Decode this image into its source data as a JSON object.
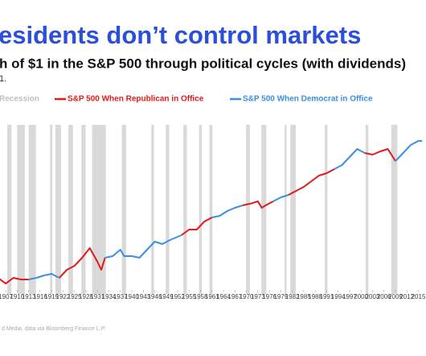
{
  "chart_data": {
    "type": "line",
    "title": "esidents don’t control markets",
    "subtitle": "h of $1 in the S&P 500 through political cycles (with dividends)",
    "note": "1.",
    "source": "d Media, data via Bloomberg Finance L.P.",
    "log_scale": true,
    "xlim": [
      1905.5,
      2017
    ],
    "ylim": [
      0.5,
      50000
    ],
    "xticks": [
      1907,
      1910,
      1913,
      1916,
      1919,
      1922,
      1925,
      1928,
      1931,
      1934,
      1937,
      1940,
      1943,
      1946,
      1949,
      1952,
      1955,
      1958,
      1961,
      1964,
      1967,
      1970,
      1973,
      1976,
      1979,
      1982,
      1985,
      1988,
      1991,
      1994,
      1997,
      2000,
      2003,
      2006,
      2009,
      2012,
      2015
    ],
    "recessions": {
      "name": "Recession",
      "color": "#d9d9d9",
      "ranges": [
        [
          1907.4,
          1908.5
        ],
        [
          1910,
          1912
        ],
        [
          1913,
          1914.9
        ],
        [
          1918.6,
          1919.2
        ],
        [
          1920,
          1921.5
        ],
        [
          1923.4,
          1924.6
        ],
        [
          1926.8,
          1927.9
        ],
        [
          1929.6,
          1933.2
        ],
        [
          1937.4,
          1938.5
        ],
        [
          1945.1,
          1945.8
        ],
        [
          1948.9,
          1949.8
        ],
        [
          1953.5,
          1954.4
        ],
        [
          1957.6,
          1958.3
        ],
        [
          1960.3,
          1961.1
        ],
        [
          1969.9,
          1970.9
        ],
        [
          1973.9,
          1975.2
        ],
        [
          1980,
          1980.5
        ],
        [
          1981.5,
          1982.9
        ],
        [
          1990.5,
          1991.2
        ],
        [
          2001.2,
          2001.9
        ],
        [
          2007.9,
          2009.5
        ]
      ]
    },
    "series": [
      {
        "name": "S&P 500 When Republican in Office",
        "color": "#e01b1b",
        "x": [
          1905,
          1907,
          1909,
          1911,
          1913,
          1917,
          1921,
          1923,
          1925,
          1927,
          1929,
          1931,
          1932,
          1933,
          1943,
          1953,
          1955,
          1957,
          1959,
          1961,
          1965,
          1969,
          1971,
          1973,
          1974,
          1975,
          1977,
          1979,
          1981,
          1983,
          1985,
          1987,
          1989,
          1991,
          1993,
          1997,
          2001,
          2003,
          2005,
          2007,
          2009
        ],
        "values": [
          1.14,
          0.77,
          1.14,
          1.02,
          1.02,
          null,
          1.14,
          1.97,
          2.59,
          4.48,
          8.65,
          3.4,
          1.97,
          4.48,
          null,
          20.8,
          30.5,
          30.5,
          52.8,
          69.5,
          null,
          158,
          177,
          208,
          134,
          158,
          208,
          null,
          323,
          425,
          558,
          819,
          1200,
          1416,
          1862,
          null,
          5585,
          5000,
          6223,
          7345,
          3228
        ]
      },
      {
        "name": "S&P 500 When Democrat in Office",
        "color": "#3b8fe0",
        "x": [
          1913,
          1915,
          1917,
          1919,
          1921,
          1923,
          1933,
          1935,
          1937,
          1938,
          1940,
          1942,
          1944,
          1946,
          1948,
          1950,
          1953,
          1957,
          1961,
          1963,
          1965,
          1967,
          1969,
          1973,
          1977,
          1979,
          1981,
          1987,
          1993,
          1995,
          1997,
          1999,
          2001,
          2005,
          2009,
          2011,
          2013,
          2015,
          2016
        ],
        "values": [
          1.02,
          1.14,
          1.34,
          1.5,
          1.14,
          null,
          4.48,
          5.0,
          7.74,
          5.0,
          5.0,
          4.48,
          7.74,
          13.4,
          11.4,
          15.0,
          20.8,
          null,
          69.5,
          77.5,
          108,
          134,
          158,
          null,
          208,
          274,
          323,
          null,
          1862,
          2449,
          4246,
          7345,
          5585,
          null,
          3228,
          5585,
          9660,
          12700,
          12700
        ]
      }
    ]
  }
}
